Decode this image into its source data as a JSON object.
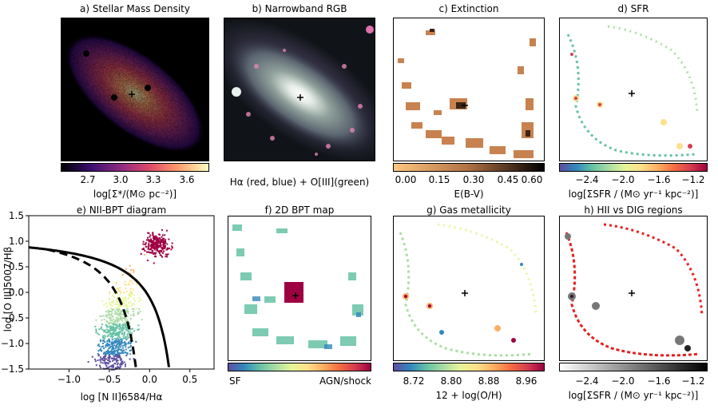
{
  "panels": [
    {
      "title": "a) Stellar Mass Density",
      "colorbar_ticks": [
        "2.7",
        "3.0",
        "3.3",
        "3.6"
      ],
      "colorbar_label": "log[Σ*/(M⊙ pc⁻²)]"
    },
    {
      "title": "b) Narrowband RGB",
      "caption": "Hα (red, blue) + O[III](green)"
    },
    {
      "title": "c) Extinction",
      "colorbar_ticks": [
        "0.00",
        "0.15",
        "0.30",
        "0.45",
        "0.60"
      ],
      "colorbar_label": "E(B-V)"
    },
    {
      "title": "d) SFR",
      "colorbar_ticks": [
        "−2.4",
        "−2.0",
        "−1.6",
        "−1.2"
      ],
      "colorbar_label": "log[ΣSFR / (M⊙ yr⁻¹ kpc⁻²)]"
    },
    {
      "title": "e) NII-BPT diagram"
    },
    {
      "title": "f) 2D BPT map",
      "colorbar_left": "SF",
      "colorbar_right": "AGN/shock"
    },
    {
      "title": "g) Gas metallicity",
      "colorbar_ticks": [
        "8.72",
        "8.80",
        "8.88",
        "8.96"
      ],
      "colorbar_label": "12 + log(O/H)"
    },
    {
      "title": "h) HII vs DIG regions",
      "colorbar_ticks": [
        "−2.4",
        "−2.0",
        "−1.6",
        "−1.2"
      ],
      "colorbar_label": "log[ΣSFR / (M⊙ yr⁻¹ kpc⁻²)]"
    }
  ],
  "chart_data": {
    "type": "scatter",
    "title": "e) NII-BPT diagram",
    "xlabel": "log [N II]6584/Hα",
    "ylabel": "log [O III]5007/Hβ",
    "xlim": [
      -1.5,
      0.8
    ],
    "ylim": [
      -1.5,
      1.5
    ],
    "xticks": [
      "−1.0",
      "−0.5",
      "0.0",
      "0.5"
    ],
    "yticks": [
      "1.5",
      "1.0",
      "0.5",
      "0.0",
      "−0.5",
      "−1.0",
      "−1.5"
    ],
    "xtick_values": [
      -1.0,
      -0.5,
      0.0,
      0.5
    ],
    "ytick_values": [
      1.5,
      1.0,
      0.5,
      0.0,
      -0.5,
      -1.0,
      -1.5
    ],
    "clusters": [
      {
        "center_x": -0.42,
        "center_y": -0.85,
        "spread_x": 0.12,
        "spread_y": 0.45
      },
      {
        "center_x": 0.08,
        "center_y": 0.95,
        "spread_x": 0.08,
        "spread_y": 0.12
      }
    ]
  },
  "colors": {
    "magma": [
      "#000004",
      "#3b0f70",
      "#8c2981",
      "#de4968",
      "#fe9f6d",
      "#fcfdbf"
    ],
    "copper": [
      "#000000",
      "#7f4f33",
      "#ffc77f"
    ],
    "spectral": [
      "#5e4fa2",
      "#3288bd",
      "#66c2a5",
      "#abdda4",
      "#e6f598",
      "#fee08b",
      "#fdae61",
      "#f46d43",
      "#d53e4f",
      "#9e0142"
    ],
    "gray": [
      "#ffffff",
      "#000000"
    ]
  }
}
